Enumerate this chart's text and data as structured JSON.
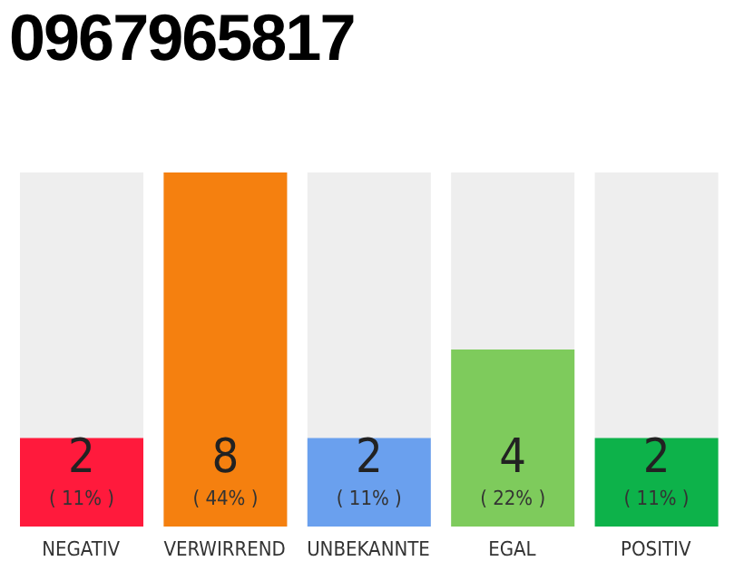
{
  "chart_data": {
    "type": "bar",
    "title": "0967965817",
    "categories": [
      "NEGATIV",
      "VERWIRREND",
      "UNBEKANNTE",
      "EGAL",
      "POSITIV"
    ],
    "values": [
      2,
      8,
      2,
      4,
      2
    ],
    "colors": [
      "#ff1a3c",
      "#f5800f",
      "#6aa0ee",
      "#7ecb5c",
      "#0db24a"
    ],
    "value_labels": [
      "2\n( 11% )",
      "8\n( 44% )",
      "2\n( 11% )",
      "4\n( 22% )",
      "2\n( 11% )"
    ],
    "grid": false,
    "legend": false
  }
}
